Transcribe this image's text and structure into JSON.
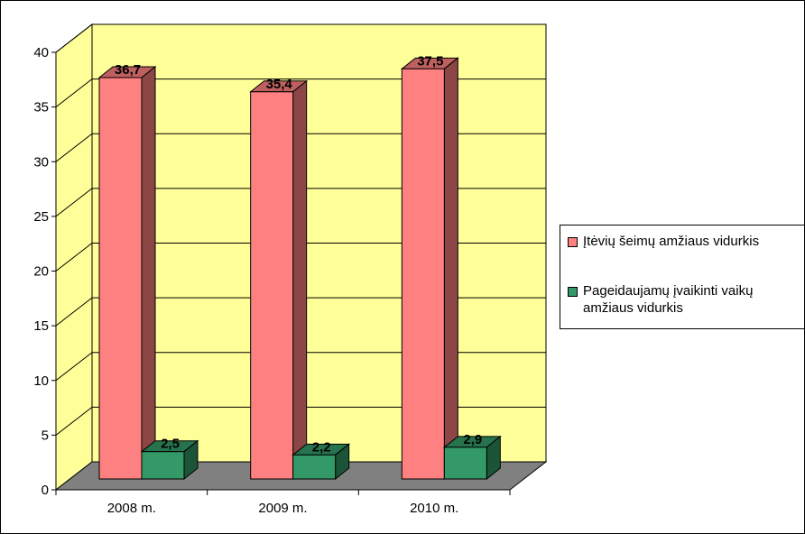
{
  "chart_data": {
    "type": "bar",
    "categories": [
      "2008 m.",
      "2009 m.",
      "2010 m."
    ],
    "series": [
      {
        "name": "Įtėvių šeimų amžiaus vidurkis",
        "values": [
          36.7,
          35.4,
          37.5
        ],
        "labels": [
          "36,7",
          "35,4",
          "37,5"
        ],
        "color": "#ff8080"
      },
      {
        "name": "Pageidaujamų įvaikinti vaikų amžiaus vidurkis",
        "values": [
          2.5,
          2.2,
          2.9
        ],
        "labels": [
          "2,5",
          "2,2",
          "2,9"
        ],
        "color": "#339966"
      }
    ],
    "yticks": [
      "0",
      "5",
      "10",
      "15",
      "20",
      "25",
      "30",
      "35",
      "40"
    ],
    "ylim": [
      0,
      40
    ],
    "grid": true,
    "legend_position": "right",
    "style": "3d-column",
    "wall_color": "#ffff99",
    "floor_color": "#808080"
  },
  "legend": {
    "items": [
      {
        "label": "Įtėvių šeimų amžiaus vidurkis",
        "color": "#ff8080"
      },
      {
        "label": "Pageidaujamų įvaikinti vaikų\namžiaus vidurkis",
        "color": "#339966"
      }
    ]
  }
}
